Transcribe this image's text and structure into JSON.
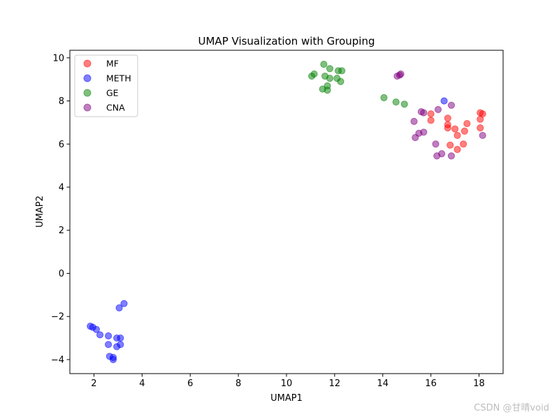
{
  "chart_data": {
    "type": "scatter",
    "title": "UMAP Visualization with Grouping",
    "xlabel": "UMAP1",
    "ylabel": "UMAP2",
    "xlim": [
      1.0,
      19.0
    ],
    "ylim": [
      -4.65,
      10.35
    ],
    "xticks": [
      2,
      4,
      6,
      8,
      10,
      12,
      14,
      16,
      18
    ],
    "yticks": [
      -4,
      -2,
      0,
      2,
      4,
      6,
      8,
      10
    ],
    "grid": false,
    "legend_position": "top-left",
    "series": [
      {
        "name": "MF",
        "color": "#ff0000",
        "points": [
          [
            16.0,
            7.4
          ],
          [
            16.0,
            7.1
          ],
          [
            16.7,
            7.2
          ],
          [
            16.7,
            6.9
          ],
          [
            16.7,
            6.75
          ],
          [
            17.0,
            6.7
          ],
          [
            17.1,
            6.4
          ],
          [
            17.4,
            6.6
          ],
          [
            17.5,
            6.95
          ],
          [
            16.8,
            5.95
          ],
          [
            17.1,
            5.75
          ],
          [
            17.35,
            6.0
          ],
          [
            18.05,
            7.45
          ],
          [
            18.15,
            7.4
          ],
          [
            18.05,
            7.15
          ],
          [
            18.05,
            6.75
          ]
        ]
      },
      {
        "name": "METH",
        "color": "#0000ff",
        "points": [
          [
            1.85,
            -2.45
          ],
          [
            1.95,
            -2.5
          ],
          [
            2.1,
            -2.6
          ],
          [
            2.25,
            -2.85
          ],
          [
            2.6,
            -2.9
          ],
          [
            2.6,
            -3.3
          ],
          [
            2.95,
            -3.0
          ],
          [
            3.1,
            -3.0
          ],
          [
            3.1,
            -3.3
          ],
          [
            2.95,
            -3.4
          ],
          [
            2.65,
            -3.85
          ],
          [
            2.8,
            -3.9
          ],
          [
            2.8,
            -4.0
          ],
          [
            3.05,
            -1.6
          ],
          [
            3.25,
            -1.4
          ],
          [
            16.55,
            8.0
          ]
        ]
      },
      {
        "name": "GE",
        "color": "#008000",
        "points": [
          [
            11.05,
            9.15
          ],
          [
            11.15,
            9.25
          ],
          [
            11.55,
            9.7
          ],
          [
            11.8,
            9.5
          ],
          [
            11.6,
            9.15
          ],
          [
            11.8,
            9.05
          ],
          [
            12.15,
            9.4
          ],
          [
            12.3,
            9.4
          ],
          [
            12.1,
            9.05
          ],
          [
            12.25,
            8.9
          ],
          [
            11.7,
            8.7
          ],
          [
            11.5,
            8.55
          ],
          [
            11.7,
            8.5
          ],
          [
            14.05,
            8.15
          ],
          [
            14.55,
            7.95
          ],
          [
            14.9,
            7.85
          ]
        ]
      },
      {
        "name": "CNA",
        "color": "#800080",
        "points": [
          [
            14.6,
            9.15
          ],
          [
            14.75,
            9.25
          ],
          [
            14.7,
            9.2
          ],
          [
            16.3,
            7.6
          ],
          [
            16.85,
            7.8
          ],
          [
            15.6,
            7.5
          ],
          [
            15.7,
            7.45
          ],
          [
            15.3,
            7.05
          ],
          [
            15.5,
            6.5
          ],
          [
            15.7,
            6.55
          ],
          [
            15.35,
            6.3
          ],
          [
            16.2,
            6.0
          ],
          [
            16.45,
            5.55
          ],
          [
            16.25,
            5.45
          ],
          [
            16.85,
            5.45
          ],
          [
            18.15,
            6.4
          ]
        ]
      }
    ]
  },
  "watermark": "CSDN @甘晴void"
}
